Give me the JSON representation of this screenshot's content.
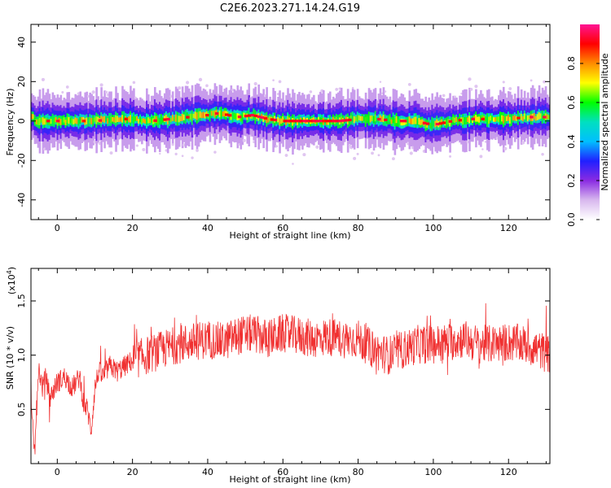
{
  "title": "C2E6.2023.271.14.24.G19",
  "chart_data": [
    {
      "type": "heatmap",
      "xlabel": "Height of straight line (km)",
      "ylabel": "Frequency (Hz)",
      "xlim": [
        -7,
        131
      ],
      "ylim": [
        -50,
        49
      ],
      "xticks": [
        0,
        20,
        40,
        60,
        80,
        100,
        120
      ],
      "yticks": [
        -40,
        -20,
        0,
        20,
        40
      ],
      "ridge": {
        "x": [
          -6,
          0,
          5,
          10,
          15,
          20,
          25,
          30,
          35,
          40,
          43,
          48,
          52,
          56,
          60,
          65,
          70,
          75,
          80,
          85,
          90,
          95,
          100,
          105,
          110,
          115,
          120,
          125,
          131
        ],
        "frequency": [
          0,
          0,
          0,
          0,
          1,
          1,
          0,
          1,
          2,
          3,
          4,
          2,
          3,
          1,
          0,
          0,
          0,
          0,
          1,
          1,
          0,
          0,
          -2,
          0,
          1,
          1,
          1,
          2,
          2
        ]
      },
      "colorbar": {
        "label": "Normalized spectral amplitude",
        "range": [
          0.0,
          1.0
        ],
        "ticks": [
          "0.0",
          "0.2",
          "0.4",
          "0.6",
          "0.8"
        ],
        "tick_values": [
          0.0,
          0.2,
          0.4,
          0.6,
          0.8
        ],
        "colormap": [
          "#ffffff",
          "#d8b8ee",
          "#8a2be2",
          "#2020ff",
          "#00bfff",
          "#00e0c0",
          "#00ff00",
          "#ffff00",
          "#ff8c00",
          "#ff0000",
          "#ff1493"
        ]
      }
    },
    {
      "type": "line",
      "xlabel": "Height of straight line (km)",
      "ylabel": "SNR (10 * v/v)",
      "y_multiplier": "(x10",
      "y_multiplier_exp": "4",
      "y_multiplier_close": ")",
      "xlim": [
        -7,
        131
      ],
      "ylim": [
        0,
        1.8
      ],
      "xticks": [
        0,
        20,
        40,
        60,
        80,
        100,
        120
      ],
      "yticks": [
        0.5,
        1.0,
        1.5
      ],
      "ytick_labels": [
        "0.5",
        "1.0",
        "1.5"
      ],
      "series_color": "#f03030",
      "series": [
        {
          "x": [
            -7,
            -6,
            -5,
            -4,
            -3,
            -2,
            0,
            2,
            4,
            6,
            7,
            8,
            9,
            10,
            11,
            12,
            14,
            16,
            18,
            20,
            24,
            28,
            32,
            36,
            40,
            44,
            48,
            52,
            56,
            60,
            64,
            68,
            72,
            76,
            80,
            84,
            88,
            92,
            96,
            100,
            104,
            108,
            112,
            116,
            120,
            124,
            128,
            131
          ],
          "y": [
            0.5,
            0.1,
            0.9,
            0.7,
            0.8,
            0.6,
            0.75,
            0.8,
            0.7,
            0.8,
            0.55,
            0.5,
            0.3,
            0.7,
            0.85,
            0.8,
            0.9,
            0.85,
            0.9,
            0.95,
            1.0,
            1.05,
            1.1,
            1.12,
            1.15,
            1.12,
            1.18,
            1.2,
            1.15,
            1.2,
            1.18,
            1.15,
            1.17,
            1.15,
            1.15,
            1.05,
            1.0,
            1.05,
            1.1,
            1.1,
            1.12,
            1.15,
            1.1,
            1.1,
            1.12,
            1.1,
            1.05,
            1.0
          ]
        }
      ]
    }
  ]
}
